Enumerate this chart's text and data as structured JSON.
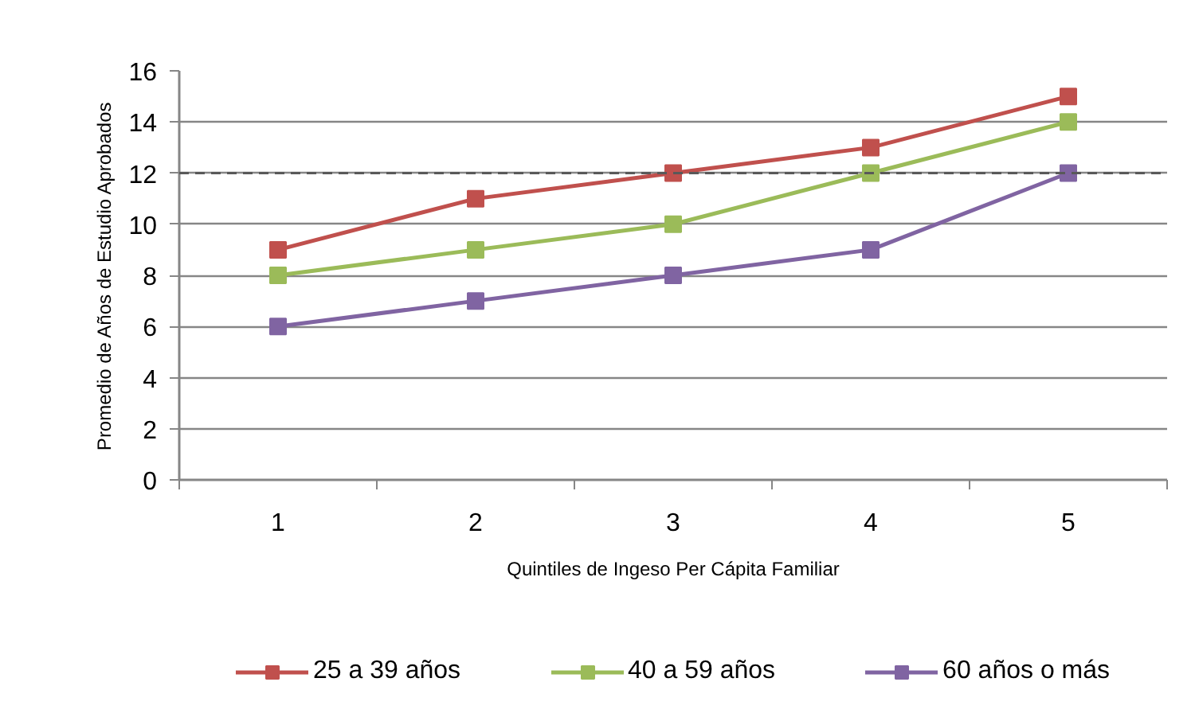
{
  "chart_data": {
    "type": "line",
    "xlabel": "Quintiles de Ingeso Per Cápita Familiar",
    "ylabel": "Promedio de Años de Estudio Aprobados",
    "categories": [
      "1",
      "2",
      "3",
      "4",
      "5"
    ],
    "series": [
      {
        "name": "25 a 39 años",
        "color": "#c0504d",
        "values": [
          9,
          11,
          12,
          13,
          15
        ]
      },
      {
        "name": "40 a 59 años",
        "color": "#9bbb59",
        "values": [
          8,
          9,
          10,
          12,
          14
        ]
      },
      {
        "name": "60 años o más",
        "color": "#8064a2",
        "values": [
          6,
          7,
          8,
          9,
          12
        ]
      }
    ],
    "ylim": [
      0,
      16
    ],
    "yticks": [
      0,
      2,
      4,
      6,
      8,
      10,
      12,
      14,
      16
    ],
    "grid": "y",
    "legend": "bottom",
    "marker": "square",
    "line_style": "solid",
    "ref_lines": [
      {
        "axis": "y",
        "value": 12,
        "color": "#595959",
        "line_style": "dashed"
      }
    ]
  }
}
